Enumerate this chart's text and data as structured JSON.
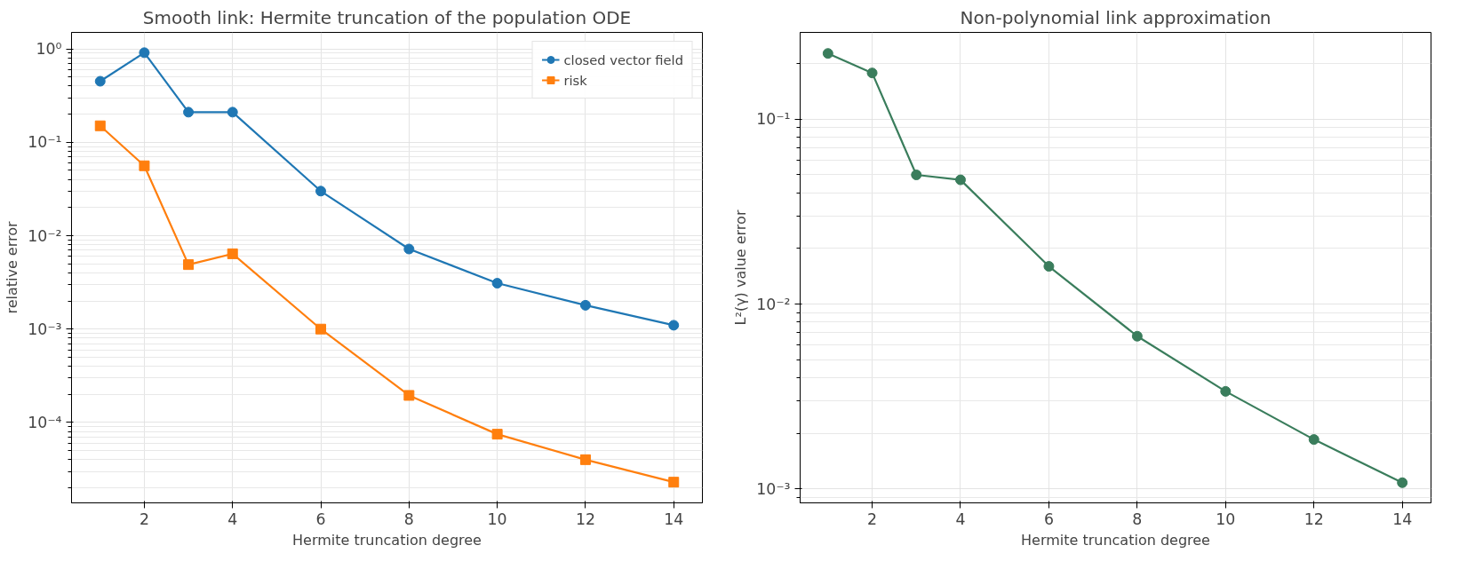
{
  "chart_data": [
    {
      "type": "line",
      "title": "Smooth link: Hermite truncation of the population ODE",
      "xlabel": "Hermite truncation degree",
      "ylabel": "relative error",
      "log": "y",
      "grid": true,
      "legend": "top right",
      "x": [
        1,
        2,
        3,
        4,
        6,
        8,
        10,
        12,
        14
      ],
      "xlim": [
        0.35,
        14.65
      ],
      "xticks": [
        2,
        4,
        6,
        8,
        10,
        12,
        14
      ],
      "ylim": [
        1.38e-05,
        1.5
      ],
      "yticks": [
        {
          "value": 0.0001,
          "label": "10⁻⁴"
        },
        {
          "value": 0.001,
          "label": "10⁻³"
        },
        {
          "value": 0.01,
          "label": "10⁻²"
        },
        {
          "value": 0.1,
          "label": "10⁻¹"
        },
        {
          "value": 1,
          "label": "10⁰"
        }
      ],
      "series": [
        {
          "name": "closed vector field",
          "color": "#1f77b4",
          "marker": "circle",
          "values": [
            0.45,
            0.91,
            0.21,
            0.21,
            0.03,
            0.0072,
            0.0031,
            0.0018,
            0.0011
          ]
        },
        {
          "name": "risk",
          "color": "#ff7f0e",
          "marker": "square",
          "values": [
            0.15,
            0.056,
            0.0049,
            0.0064,
            0.001,
            0.000195,
            7.5e-05,
            4e-05,
            2.3e-05
          ]
        }
      ]
    },
    {
      "type": "line",
      "title": "Non-polynomial link approximation",
      "xlabel": "Hermite truncation degree",
      "ylabel": "L²(γ) value error",
      "log": "y",
      "grid": true,
      "x": [
        1,
        2,
        3,
        4,
        6,
        8,
        10,
        12,
        14
      ],
      "xlim": [
        0.37,
        14.65
      ],
      "xticks": [
        2,
        4,
        6,
        8,
        10,
        12,
        14
      ],
      "ylim": [
        0.00084,
        0.295
      ],
      "yticks": [
        {
          "value": 0.001,
          "label": "10⁻³"
        },
        {
          "value": 0.01,
          "label": "10⁻²"
        },
        {
          "value": 0.1,
          "label": "10⁻¹"
        }
      ],
      "series": [
        {
          "color": "#3a7d5c",
          "marker": "circle",
          "values": [
            0.227,
            0.178,
            0.05,
            0.047,
            0.016,
            0.0067,
            0.00337,
            0.00185,
            0.00108
          ]
        }
      ]
    }
  ]
}
